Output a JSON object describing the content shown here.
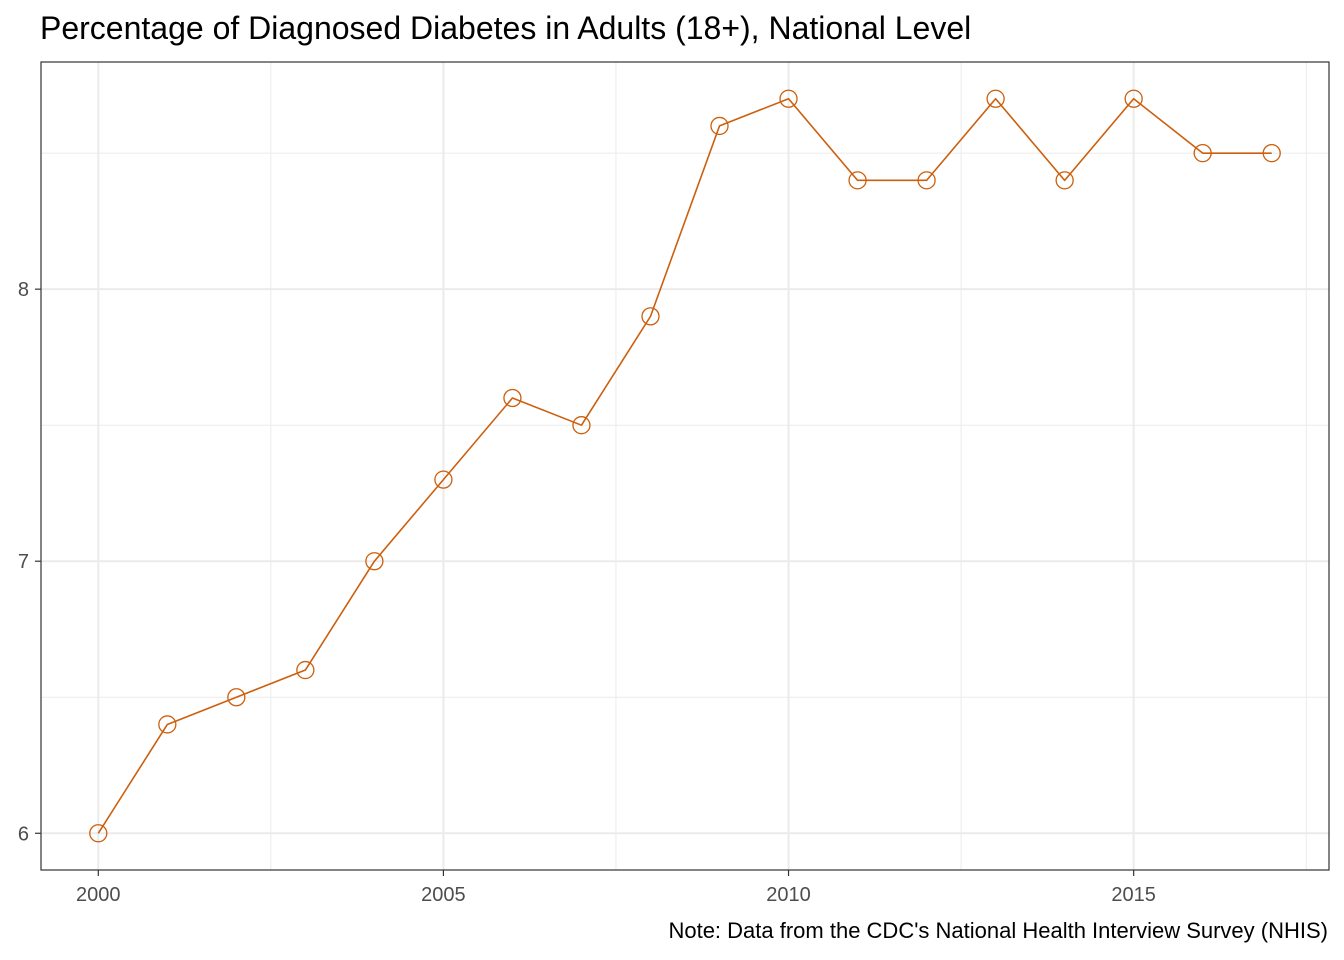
{
  "chart_data": {
    "type": "line",
    "title": "Percentage of Diagnosed Diabetes in Adults (18+), National Level",
    "caption": "Note: Data from the CDC's National Health Interview Survey (NHIS)",
    "xlabel": "",
    "ylabel": "",
    "x": [
      2000,
      2001,
      2002,
      2003,
      2004,
      2005,
      2006,
      2007,
      2008,
      2009,
      2010,
      2011,
      2012,
      2013,
      2014,
      2015,
      2016,
      2017
    ],
    "series": [
      {
        "values": [
          6.0,
          6.4,
          6.5,
          6.6,
          7.0,
          7.3,
          7.6,
          7.5,
          7.9,
          8.6,
          8.7,
          8.4,
          8.4,
          8.7,
          8.4,
          8.7,
          8.5,
          8.5
        ]
      }
    ],
    "xlim": [
      1999.17,
      2017.83
    ],
    "ylim": [
      5.865,
      8.835
    ],
    "x_ticks": [
      2000,
      2005,
      2010,
      2015
    ],
    "x_minor_ticks": [
      2002.5,
      2007.5,
      2012.5,
      2017.5
    ],
    "y_ticks": [
      6,
      7,
      8
    ],
    "y_minor_ticks": [
      6.5,
      7.5,
      8.5
    ],
    "grid": true,
    "legend": "none",
    "colors": {
      "series": "#cc5f0d",
      "grid": "#ebebeb",
      "border": "#333333",
      "tick_text": "#4d4d4d"
    }
  }
}
